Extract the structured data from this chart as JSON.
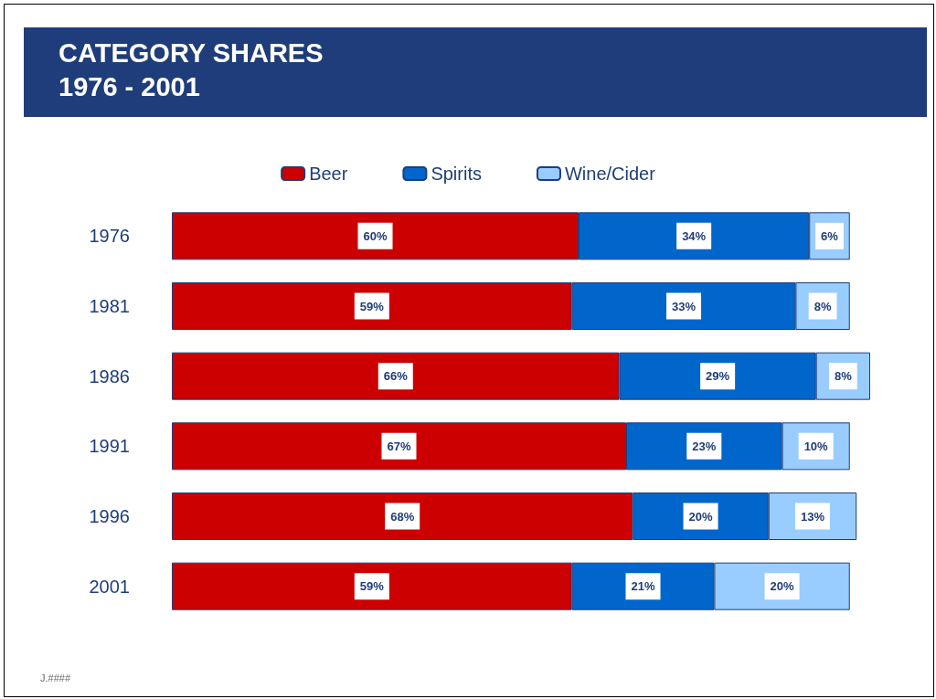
{
  "chart_data": {
    "type": "bar",
    "orientation": "horizontal",
    "stacked": true,
    "title": "CATEGORY SHARES",
    "subtitle": "1976 - 2001",
    "categories": [
      "1976",
      "1981",
      "1986",
      "1991",
      "1996",
      "2001"
    ],
    "series": [
      {
        "name": "Beer",
        "color": "#cc0000",
        "values": [
          60,
          59,
          66,
          67,
          68,
          59
        ],
        "value_labels": [
          "60%",
          "59%",
          "66%",
          "67%",
          "68%",
          "59%"
        ]
      },
      {
        "name": "Spirits",
        "color": "#0066cc",
        "values": [
          34,
          33,
          29,
          23,
          20,
          21
        ],
        "value_labels": [
          "34%",
          "33%",
          "29%",
          "23%",
          "20%",
          "21%"
        ]
      },
      {
        "name": "Wine/Cider",
        "color": "#99ccff",
        "values": [
          6,
          8,
          8,
          10,
          13,
          20
        ],
        "value_labels": [
          "6%",
          "8%",
          "8%",
          "10%",
          "13%",
          "20%"
        ]
      }
    ],
    "legend": "top",
    "grid": false,
    "annotations": [
      "J.####"
    ]
  }
}
